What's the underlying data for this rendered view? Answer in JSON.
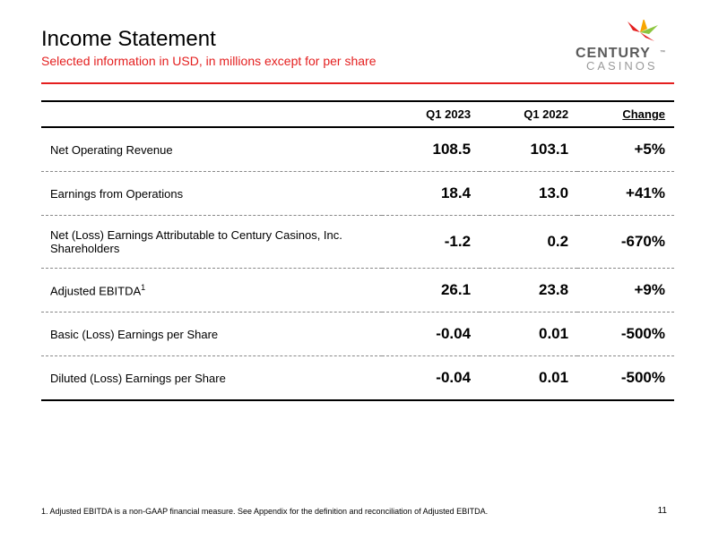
{
  "header": {
    "title": "Income Statement",
    "subtitle": "Selected information in USD, in millions except for per share"
  },
  "logo": {
    "top_text": "CENTURY",
    "bottom_text": "CASINOS",
    "colors": {
      "burst1": "#e41f1f",
      "burst2": "#f7a600",
      "burst3": "#8cc63f",
      "text": "#5a5a5a"
    }
  },
  "table": {
    "columns": [
      "",
      "Q1 2023",
      "Q1 2022",
      "Change"
    ],
    "rows": [
      {
        "label": "Net Operating Revenue",
        "q1_2023": "108.5",
        "q1_2022": "103.1",
        "change": "+5%"
      },
      {
        "label": "Earnings from Operations",
        "q1_2023": "18.4",
        "q1_2022": "13.0",
        "change": "+41%"
      },
      {
        "label": "Net (Loss) Earnings Attributable to Century Casinos, Inc. Shareholders",
        "q1_2023": "-1.2",
        "q1_2022": "0.2",
        "change": "-670%"
      },
      {
        "label": "Adjusted EBITDA",
        "sup": "1",
        "q1_2023": "26.1",
        "q1_2022": "23.8",
        "change": "+9%"
      },
      {
        "label": "Basic (Loss) Earnings per Share",
        "q1_2023": "-0.04",
        "q1_2022": "0.01",
        "change": "-500%"
      },
      {
        "label": "Diluted (Loss) Earnings per Share",
        "q1_2023": "-0.04",
        "q1_2022": "0.01",
        "change": "-500%"
      }
    ]
  },
  "footnote": "1.    Adjusted EBITDA is a non-GAAP financial measure. See Appendix for the definition and reconciliation of Adjusted EBITDA.",
  "page_number": "11",
  "styling": {
    "accent_color": "#e41f1f",
    "text_color": "#000000",
    "background": "#ffffff",
    "title_fontsize": 24,
    "subtitle_fontsize": 14,
    "header_cell_fontsize": 13,
    "label_cell_fontsize": 13,
    "value_cell_fontsize": 17,
    "footnote_fontsize": 9,
    "rule_width": 2,
    "dash_border_color": "#888888"
  }
}
